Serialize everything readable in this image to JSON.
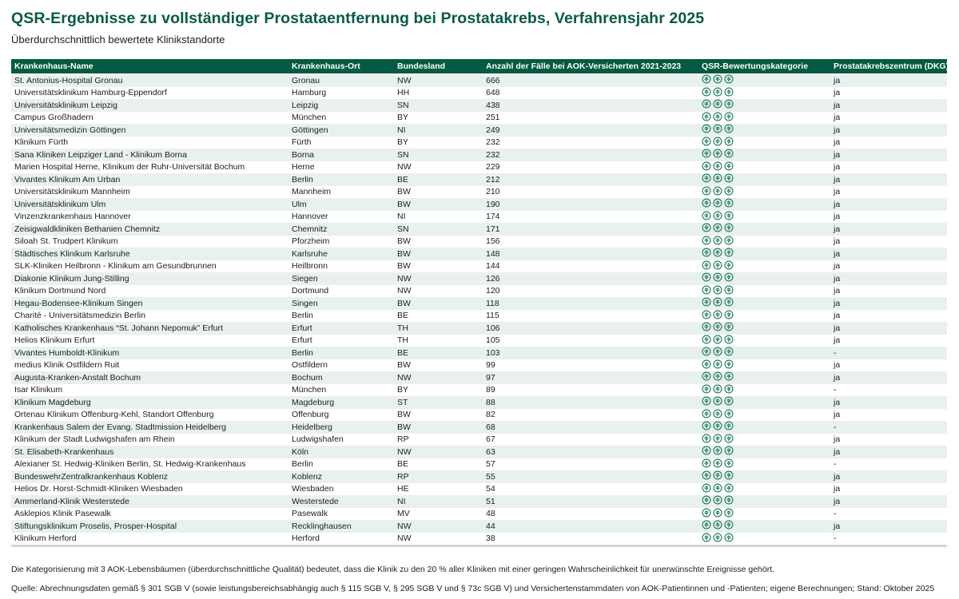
{
  "page": {
    "title": "QSR-Ergebnisse zu vollständiger Prostataentfernung bei Prostatakrebs, Verfahrensjahr 2025",
    "subtitle": "Überdurchschnittlich bewertete Klinikstandorte"
  },
  "colors": {
    "title_green": "#085a48",
    "header_bg": "#045a42",
    "row_alt_bg": "#e8f1ee",
    "tree": "#1e7a55",
    "table_bottom_border": "#ccd8d2"
  },
  "table": {
    "columns": [
      "Krankenhaus-Name",
      "Krankenhaus-Ort",
      "Bundesland",
      "Anzahl der Fälle bei AOK-Versicherten 2021-2023",
      "QSR-Bewertungskategorie",
      "Prostatakrebszentrum (DKG)"
    ],
    "rating_icon": "aok-lebensbaum-tree-icon",
    "rows": [
      {
        "name": "St. Antonius-Hospital Gronau",
        "ort": "Gronau",
        "land": "NW",
        "faelle": "666",
        "trees": 3,
        "dkg": "ja"
      },
      {
        "name": "Universitätsklinikum Hamburg-Eppendorf",
        "ort": "Hamburg",
        "land": "HH",
        "faelle": "648",
        "trees": 3,
        "dkg": "ja"
      },
      {
        "name": "Universitätsklinikum Leipzig",
        "ort": "Leipzig",
        "land": "SN",
        "faelle": "438",
        "trees": 3,
        "dkg": "ja"
      },
      {
        "name": "Campus Großhadern",
        "ort": "München",
        "land": "BY",
        "faelle": "251",
        "trees": 3,
        "dkg": "ja"
      },
      {
        "name": "Universitätsmedizin Göttingen",
        "ort": "Göttingen",
        "land": "NI",
        "faelle": "249",
        "trees": 3,
        "dkg": "ja"
      },
      {
        "name": "Klinikum Fürth",
        "ort": "Fürth",
        "land": "BY",
        "faelle": "232",
        "trees": 3,
        "dkg": "ja"
      },
      {
        "name": "Sana Kliniken Leipziger Land - Klinikum Borna",
        "ort": "Borna",
        "land": "SN",
        "faelle": "232",
        "trees": 3,
        "dkg": "ja"
      },
      {
        "name": "Marien Hospital Herne, Klinikum der Ruhr-Universität Bochum",
        "ort": "Herne",
        "land": "NW",
        "faelle": "229",
        "trees": 3,
        "dkg": "ja"
      },
      {
        "name": "Vivantes Klinikum Am Urban",
        "ort": "Berlin",
        "land": "BE",
        "faelle": "212",
        "trees": 3,
        "dkg": "ja"
      },
      {
        "name": "Universitätsklinikum Mannheim",
        "ort": "Mannheim",
        "land": "BW",
        "faelle": "210",
        "trees": 3,
        "dkg": "ja"
      },
      {
        "name": "Universitätsklinikum Ulm",
        "ort": "Ulm",
        "land": "BW",
        "faelle": "190",
        "trees": 3,
        "dkg": "ja"
      },
      {
        "name": "Vinzenzkrankenhaus Hannover",
        "ort": "Hannover",
        "land": "NI",
        "faelle": "174",
        "trees": 3,
        "dkg": "ja"
      },
      {
        "name": "Zeisigwaldkliniken Bethanien Chemnitz",
        "ort": "Chemnitz",
        "land": "SN",
        "faelle": "171",
        "trees": 3,
        "dkg": "ja"
      },
      {
        "name": "Siloah St. Trudpert Klinikum",
        "ort": "Pforzheim",
        "land": "BW",
        "faelle": "156",
        "trees": 3,
        "dkg": "ja"
      },
      {
        "name": "Städtisches Klinikum Karlsruhe",
        "ort": "Karlsruhe",
        "land": "BW",
        "faelle": "148",
        "trees": 3,
        "dkg": "ja"
      },
      {
        "name": "SLK-Kliniken Heilbronn - Klinikum am Gesundbrunnen",
        "ort": "Heilbronn",
        "land": "BW",
        "faelle": "144",
        "trees": 3,
        "dkg": "ja"
      },
      {
        "name": "Diakonie Klinikum Jung-Stilling",
        "ort": "Siegen",
        "land": "NW",
        "faelle": "126",
        "trees": 3,
        "dkg": "ja"
      },
      {
        "name": "Klinikum Dortmund Nord",
        "ort": "Dortmund",
        "land": "NW",
        "faelle": "120",
        "trees": 3,
        "dkg": "ja"
      },
      {
        "name": "Hegau-Bodensee-Klinikum Singen",
        "ort": "Singen",
        "land": "BW",
        "faelle": "118",
        "trees": 3,
        "dkg": "ja"
      },
      {
        "name": "Charité - Universitätsmedizin Berlin",
        "ort": "Berlin",
        "land": "BE",
        "faelle": "115",
        "trees": 3,
        "dkg": "ja"
      },
      {
        "name": "Katholisches Krankenhaus “St. Johann Nepomuk” Erfurt",
        "ort": "Erfurt",
        "land": "TH",
        "faelle": "106",
        "trees": 3,
        "dkg": "ja"
      },
      {
        "name": "Helios Klinikum Erfurt",
        "ort": "Erfurt",
        "land": "TH",
        "faelle": "105",
        "trees": 3,
        "dkg": "ja"
      },
      {
        "name": "Vivantes Humboldt-Klinikum",
        "ort": "Berlin",
        "land": "BE",
        "faelle": "103",
        "trees": 3,
        "dkg": "-"
      },
      {
        "name": "medius Klinik Ostfildern Ruit",
        "ort": "Ostfildern",
        "land": "BW",
        "faelle": "99",
        "trees": 3,
        "dkg": "ja"
      },
      {
        "name": "Augusta-Kranken-Anstalt Bochum",
        "ort": "Bochum",
        "land": "NW",
        "faelle": "97",
        "trees": 3,
        "dkg": "ja"
      },
      {
        "name": "Isar Klinikum",
        "ort": "München",
        "land": "BY",
        "faelle": "89",
        "trees": 3,
        "dkg": "-"
      },
      {
        "name": "Klinikum Magdeburg",
        "ort": "Magdeburg",
        "land": "ST",
        "faelle": "88",
        "trees": 3,
        "dkg": "ja"
      },
      {
        "name": "Ortenau Klinikum Offenburg-Kehl, Standort Offenburg",
        "ort": "Offenburg",
        "land": "BW",
        "faelle": "82",
        "trees": 3,
        "dkg": "ja"
      },
      {
        "name": "Krankenhaus Salem der Evang. Stadtmission Heidelberg",
        "ort": "Heidelberg",
        "land": "BW",
        "faelle": "68",
        "trees": 3,
        "dkg": "-"
      },
      {
        "name": "Klinikum der Stadt Ludwigshafen am Rhein",
        "ort": "Ludwigshafen",
        "land": "RP",
        "faelle": "67",
        "trees": 3,
        "dkg": "ja"
      },
      {
        "name": "St. Elisabeth-Krankenhaus",
        "ort": "Köln",
        "land": "NW",
        "faelle": "63",
        "trees": 3,
        "dkg": "ja"
      },
      {
        "name": "Alexianer St. Hedwig-Kliniken Berlin, St. Hedwig-Krankenhaus",
        "ort": "Berlin",
        "land": "BE",
        "faelle": "57",
        "trees": 3,
        "dkg": "-"
      },
      {
        "name": "BundeswehrZentralkrankenhaus Koblenz",
        "ort": "Koblenz",
        "land": "RP",
        "faelle": "55",
        "trees": 3,
        "dkg": "ja"
      },
      {
        "name": "Helios Dr. Horst-Schmidt-Kliniken Wiesbaden",
        "ort": "Wiesbaden",
        "land": "HE",
        "faelle": "54",
        "trees": 3,
        "dkg": "ja"
      },
      {
        "name": "Ammerland-Klinik Westerstede",
        "ort": "Westerstede",
        "land": "NI",
        "faelle": "51",
        "trees": 3,
        "dkg": "ja"
      },
      {
        "name": "Asklepios Klinik Pasewalk",
        "ort": "Pasewalk",
        "land": "MV",
        "faelle": "48",
        "trees": 3,
        "dkg": "-"
      },
      {
        "name": "Stiftungsklinikum Proselis, Prosper-Hospital",
        "ort": "Recklinghausen",
        "land": "NW",
        "faelle": "44",
        "trees": 3,
        "dkg": "ja"
      },
      {
        "name": "Klinikum Herford",
        "ort": "Herford",
        "land": "NW",
        "faelle": "38",
        "trees": 3,
        "dkg": "-"
      }
    ]
  },
  "footnotes": [
    "Die Kategorisierung mit 3 AOK-Lebensbäumen (überdurchschnittliche Qualität) bedeutet, dass die Klinik zu den 20 % aller Kliniken mit einer geringen Wahrscheinlichkeit für unerwünschte Ereignisse gehört.",
    "Quelle: Abrechnungsdaten gemäß § 301 SGB V (sowie leistungsbereichsabhängig auch § 115 SGB V, § 295 SGB V und § 73c SGB V) und Versichertenstammdaten von AOK-Patientinnen und -Patienten; eigene Berechnungen; Stand: Oktober 2025"
  ]
}
